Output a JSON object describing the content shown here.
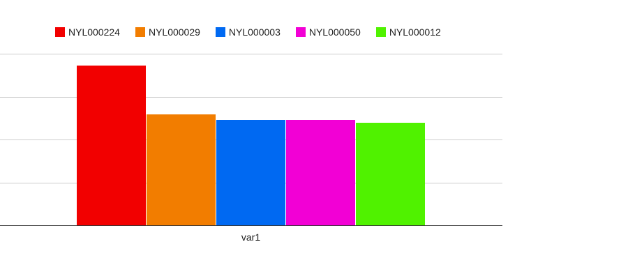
{
  "chart_data": {
    "type": "bar",
    "categories": [
      "var1"
    ],
    "series": [
      {
        "name": "NYL000224",
        "color": "#f20000",
        "values": [
          229
        ]
      },
      {
        "name": "NYL000029",
        "color": "#f27d00",
        "values": [
          159
        ]
      },
      {
        "name": "NYL000003",
        "color": "#0069f2",
        "values": [
          151
        ]
      },
      {
        "name": "NYL000050",
        "color": "#f200d5",
        "values": [
          151
        ]
      },
      {
        "name": "NYL000012",
        "color": "#50f200",
        "values": [
          147
        ]
      }
    ],
    "ylim": [
      0,
      246
    ],
    "y_ticks": [
      0,
      61.5,
      123,
      184.5,
      246
    ],
    "grid": true,
    "legend_position": "top",
    "title": "",
    "xlabel": "",
    "ylabel": ""
  }
}
